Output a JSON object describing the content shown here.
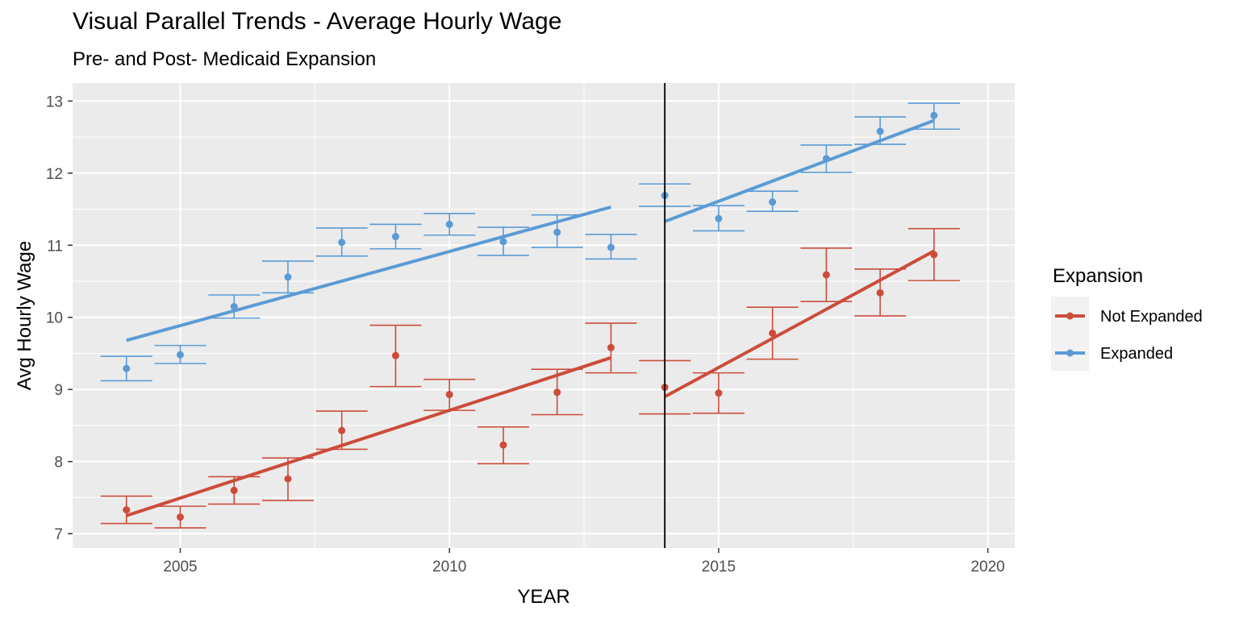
{
  "chart_data": {
    "type": "scatter",
    "title": "Visual Parallel Trends - Average Hourly Wage",
    "subtitle": "Pre- and Post- Medicaid Expansion",
    "xlabel": "YEAR",
    "ylabel": "Avg Hourly Wage",
    "xlim": [
      2003,
      2020.5
    ],
    "ylim": [
      6.8,
      13.25
    ],
    "x_ticks": [
      2005,
      2010,
      2015,
      2020
    ],
    "y_ticks": [
      7,
      8,
      9,
      10,
      11,
      12,
      13
    ],
    "grid": true,
    "vline": 2014,
    "legend": {
      "title": "Expansion",
      "position": "right"
    },
    "series": [
      {
        "name": "Not Expanded",
        "color": "#cc4c3b",
        "x": [
          2004,
          2005,
          2006,
          2007,
          2008,
          2009,
          2010,
          2011,
          2012,
          2013,
          2014,
          2015,
          2016,
          2017,
          2018,
          2019
        ],
        "y": [
          7.33,
          7.23,
          7.6,
          7.76,
          8.43,
          9.47,
          8.93,
          8.23,
          8.96,
          9.58,
          9.03,
          8.95,
          9.78,
          10.59,
          10.34,
          10.87
        ],
        "ymin": [
          7.14,
          7.08,
          7.41,
          7.46,
          8.17,
          9.04,
          8.71,
          7.97,
          8.65,
          9.23,
          8.66,
          8.67,
          9.42,
          10.22,
          10.02,
          10.51
        ],
        "ymax": [
          7.52,
          7.38,
          7.79,
          8.05,
          8.7,
          9.89,
          9.14,
          8.48,
          9.28,
          9.92,
          9.4,
          9.23,
          10.14,
          10.96,
          10.67,
          11.23
        ],
        "fits": [
          {
            "x": [
              2004,
              2013
            ],
            "y": [
              7.25,
              9.44
            ]
          },
          {
            "x": [
              2014,
              2019
            ],
            "y": [
              8.9,
              10.92
            ]
          }
        ]
      },
      {
        "name": "Expanded",
        "color": "#5b9bd5",
        "x": [
          2004,
          2005,
          2006,
          2007,
          2008,
          2009,
          2010,
          2011,
          2012,
          2013,
          2014,
          2015,
          2016,
          2017,
          2018,
          2019
        ],
        "y": [
          9.29,
          9.48,
          10.15,
          10.56,
          11.04,
          11.12,
          11.29,
          11.05,
          11.18,
          10.97,
          11.69,
          11.37,
          11.6,
          12.2,
          12.58,
          12.8
        ],
        "ymin": [
          9.12,
          9.36,
          9.99,
          10.34,
          10.85,
          10.95,
          11.14,
          10.86,
          10.97,
          10.81,
          11.54,
          11.2,
          11.47,
          12.01,
          12.4,
          12.61
        ],
        "ymax": [
          9.46,
          9.61,
          10.31,
          10.78,
          11.24,
          11.29,
          11.44,
          11.25,
          11.42,
          11.15,
          11.85,
          11.55,
          11.75,
          12.39,
          12.78,
          12.97
        ],
        "fits": [
          {
            "x": [
              2004,
              2013
            ],
            "y": [
              9.68,
              11.53
            ]
          },
          {
            "x": [
              2014,
              2019
            ],
            "y": [
              11.33,
              12.73
            ]
          }
        ]
      }
    ]
  }
}
